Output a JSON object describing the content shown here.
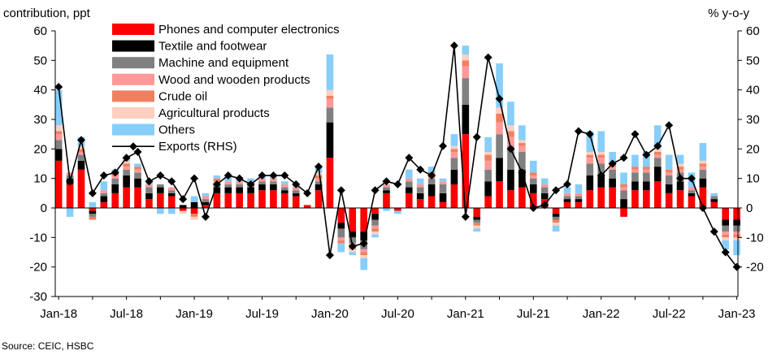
{
  "chart_data": {
    "type": "bar",
    "stacked": true,
    "ylabel_left": "contribution, ppt",
    "ylabel_right": "% y-o-y",
    "ylim": [
      -30,
      60
    ],
    "yticks": [
      -30,
      -20,
      -10,
      0,
      10,
      20,
      30,
      40,
      50,
      60
    ],
    "yticks_right": [
      -20,
      -10,
      0,
      10,
      20,
      30,
      40,
      50,
      60
    ],
    "legend_position": "top-left",
    "source": "Source: CEIC, HSBC",
    "x_tick_labels": [
      {
        "label": "Jan-18",
        "index": 0
      },
      {
        "label": "Jul-18",
        "index": 6
      },
      {
        "label": "Jan-19",
        "index": 12
      },
      {
        "label": "Jul-19",
        "index": 18
      },
      {
        "label": "Jan-20",
        "index": 24
      },
      {
        "label": "Jul-20",
        "index": 30
      },
      {
        "label": "Jan-21",
        "index": 36
      },
      {
        "label": "Jul-21",
        "index": 42
      },
      {
        "label": "Jan-22",
        "index": 48
      },
      {
        "label": "Jul-22",
        "index": 54
      },
      {
        "label": "Jan-23",
        "index": 60
      }
    ],
    "series": [
      {
        "name": "Phones and computer electronics",
        "color": "#ff0000",
        "values": [
          16,
          8,
          13,
          -1,
          2,
          5,
          7,
          7,
          3,
          5,
          4,
          -1,
          -2,
          1,
          5,
          5,
          5,
          5,
          6,
          6,
          5,
          4,
          1,
          6,
          17,
          -5,
          -8,
          -8,
          -2,
          5,
          -1,
          5,
          3,
          4,
          2,
          8,
          25,
          -3,
          4,
          9,
          6,
          7,
          5,
          3,
          -2,
          2,
          2,
          6,
          7,
          7,
          -3,
          6,
          6,
          9,
          5,
          6,
          4,
          7,
          2,
          -4,
          -4
        ]
      },
      {
        "name": "Textile and footwear",
        "color": "#000000",
        "values": [
          4,
          2,
          3,
          -1,
          2,
          3,
          4,
          3,
          2,
          2,
          1,
          1,
          2,
          1,
          2,
          2,
          2,
          2,
          2,
          2,
          1,
          1,
          0,
          2,
          12,
          -2,
          -2,
          -3,
          -2,
          1,
          0,
          2,
          2,
          4,
          3,
          5,
          10,
          -1,
          5,
          8,
          7,
          6,
          3,
          2,
          -1,
          1,
          1,
          5,
          4,
          3,
          3,
          3,
          3,
          5,
          3,
          3,
          1,
          3,
          1,
          -2,
          -2
        ]
      },
      {
        "name": "Machine and equipment",
        "color": "#808080",
        "values": [
          3,
          1,
          2,
          -1,
          1,
          2,
          2,
          2,
          2,
          1,
          1,
          0,
          0,
          1,
          1,
          1,
          1,
          1,
          1,
          1,
          1,
          1,
          0,
          1,
          5,
          -3,
          -2,
          -3,
          -2,
          1,
          0,
          2,
          2,
          2,
          3,
          4,
          9,
          -1,
          4,
          8,
          8,
          6,
          2,
          2,
          -1,
          1,
          1,
          4,
          4,
          3,
          3,
          3,
          3,
          3,
          3,
          3,
          1,
          3,
          1,
          -2,
          -2
        ]
      },
      {
        "name": "Wood and wooden products",
        "color": "#ff9999",
        "values": [
          2,
          1,
          1,
          0,
          1,
          1,
          1,
          1,
          1,
          0,
          1,
          0,
          0,
          1,
          1,
          1,
          1,
          1,
          1,
          1,
          1,
          1,
          0,
          1,
          3,
          -1,
          -1,
          -1,
          -1,
          1,
          0,
          1,
          1,
          1,
          1,
          2,
          4,
          0,
          3,
          4,
          3,
          2,
          1,
          1,
          0,
          1,
          1,
          2,
          2,
          1,
          1,
          1,
          1,
          1,
          1,
          1,
          1,
          1,
          0,
          -1,
          -1
        ]
      },
      {
        "name": "Crude oil",
        "color": "#f08060",
        "values": [
          1,
          0,
          1,
          -1,
          0,
          1,
          1,
          1,
          0,
          0,
          0,
          0,
          -1,
          0,
          1,
          0,
          0,
          0,
          0,
          0,
          0,
          0,
          0,
          1,
          1,
          -1,
          -1,
          -1,
          -1,
          0,
          0,
          0,
          0,
          1,
          0,
          1,
          2,
          -1,
          2,
          3,
          2,
          1,
          1,
          0,
          -1,
          0,
          0,
          1,
          1,
          1,
          1,
          1,
          1,
          1,
          1,
          1,
          0,
          1,
          0,
          -1,
          -1
        ]
      },
      {
        "name": "Agricultural products",
        "color": "#fbd0c0",
        "values": [
          2,
          0,
          1,
          0,
          0,
          0,
          1,
          0,
          0,
          0,
          0,
          -1,
          -1,
          0,
          0,
          0,
          0,
          0,
          0,
          0,
          0,
          0,
          0,
          1,
          2,
          0,
          -1,
          -1,
          -1,
          0,
          0,
          0,
          0,
          0,
          0,
          1,
          2,
          -1,
          1,
          2,
          2,
          1,
          0,
          0,
          -1,
          0,
          0,
          1,
          1,
          0,
          0,
          0,
          0,
          1,
          0,
          1,
          0,
          1,
          0,
          -1,
          -1
        ]
      },
      {
        "name": "Others",
        "color": "#87cefa",
        "values": [
          12,
          -3,
          3,
          2,
          3,
          1,
          1,
          1,
          1,
          -2,
          -2,
          0,
          2,
          1,
          1,
          2,
          1,
          1,
          1,
          1,
          1,
          1,
          0,
          2,
          12,
          -3,
          -1,
          -4,
          -1,
          -1,
          -1,
          3,
          2,
          2,
          1,
          4,
          3,
          -1,
          5,
          15,
          8,
          5,
          4,
          2,
          -2,
          2,
          3,
          7,
          7,
          4,
          4,
          4,
          5,
          8,
          5,
          3,
          5,
          6,
          1,
          -3,
          -5
        ]
      }
    ],
    "line": {
      "name": "Exports (RHS)",
      "color": "#000000",
      "marker": "diamond",
      "values": [
        41,
        9,
        23,
        5,
        11,
        12,
        17,
        19,
        9,
        11,
        9,
        3,
        10,
        -3,
        8,
        11,
        10,
        8,
        11,
        11,
        11,
        8,
        5,
        14,
        -16,
        6,
        -13,
        -12,
        6,
        9,
        8,
        17,
        13,
        11,
        21,
        55,
        -3,
        24,
        51,
        37,
        20,
        12,
        0,
        1,
        6,
        8,
        26,
        25,
        11,
        15,
        17,
        25,
        18,
        21,
        28,
        10,
        10,
        0,
        -8,
        -15,
        -20
      ]
    }
  }
}
